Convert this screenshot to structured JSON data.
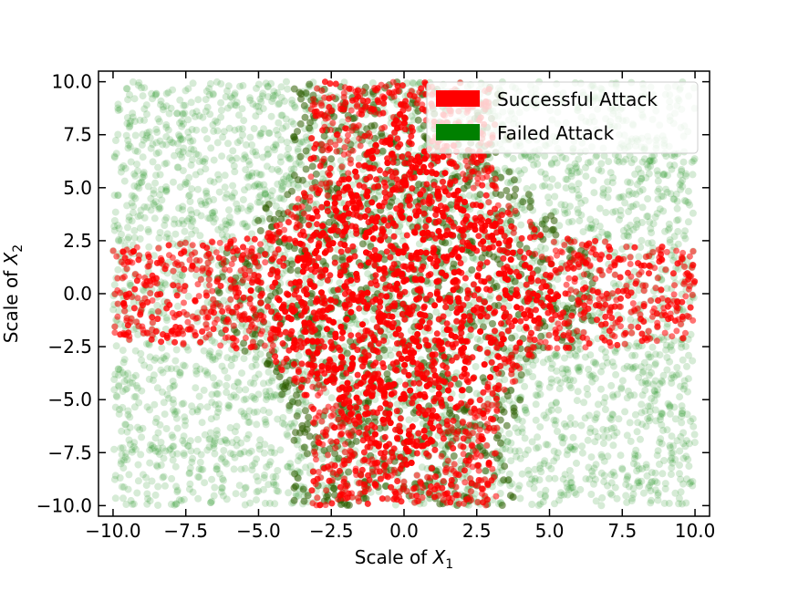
{
  "chart_data": {
    "type": "scatter",
    "title": "",
    "xlabel": {
      "prefix": "Scale of ",
      "var": "X",
      "sub": "1"
    },
    "ylabel": {
      "prefix": "Scale of ",
      "var": "X",
      "sub": "2"
    },
    "xlim": [
      -10.5,
      10.5
    ],
    "ylim": [
      -10.5,
      10.5
    ],
    "xticks": [
      -10.0,
      -7.5,
      -5.0,
      -2.5,
      0.0,
      2.5,
      5.0,
      7.5,
      10.0
    ],
    "yticks": [
      -10.0,
      -7.5,
      -5.0,
      -2.5,
      0.0,
      2.5,
      5.0,
      7.5,
      10.0
    ],
    "xtick_labels": [
      "−10.0",
      "−7.5",
      "−5.0",
      "−2.5",
      "0.0",
      "2.5",
      "5.0",
      "7.5",
      "10.0"
    ],
    "ytick_labels": [
      "−10.0",
      "−7.5",
      "−5.0",
      "−2.5",
      "0.0",
      "2.5",
      "5.0",
      "7.5",
      "10.0"
    ],
    "grid": false,
    "legend_position": "top-right",
    "series": [
      {
        "name": "Successful Attack",
        "color": "#ff0000",
        "description_region": "diamond/cross-shaped region centered at origin: |x1| up to ~10 along x2≈0, |x2| up to 10 along x1≈0",
        "x_range": [
          -10.0,
          10.0
        ],
        "y_range": [
          -10.0,
          10.0
        ]
      },
      {
        "name": "Failed Attack",
        "color": "#008000",
        "x_range": [
          -10.0,
          10.0
        ],
        "y_range": [
          -10.0,
          10.0
        ]
      }
    ]
  }
}
